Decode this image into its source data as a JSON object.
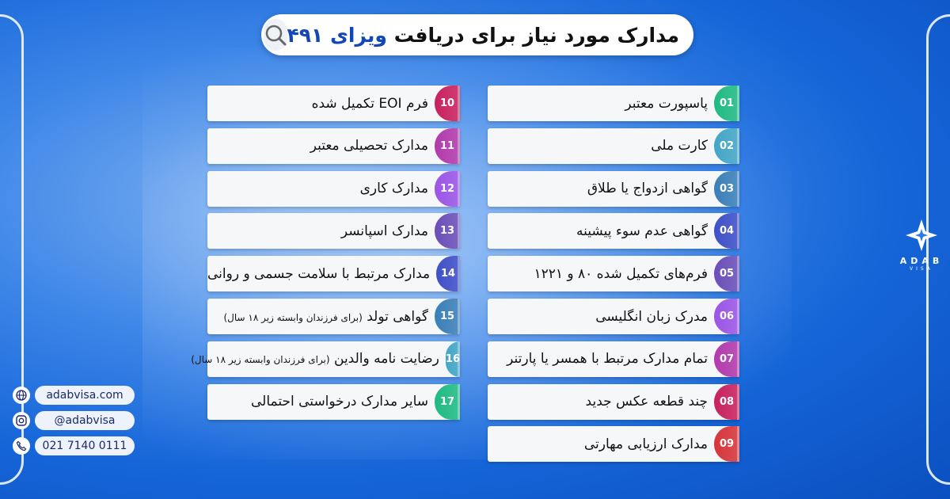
{
  "title": {
    "prefix": "مدارک مورد نیاز برای دریافت",
    "highlight": "ویزای ۴۹۱",
    "icon": "search-icon"
  },
  "right_items": [
    {
      "num": "01",
      "label": "پاسپورت معتبر",
      "color": "#1fba84"
    },
    {
      "num": "02",
      "label": "کارت ملی",
      "color": "#43a6c6"
    },
    {
      "num": "03",
      "label": "گواهی ازدواج یا طلاق",
      "color": "#3a7fb8"
    },
    {
      "num": "04",
      "label": "گواهی عدم سوء پیشینه",
      "color": "#3f4fc8"
    },
    {
      "num": "05",
      "label": "فرم‌های تکمیل شده ۸۰ و ۱۲۲۱",
      "color": "#6a4fb8"
    },
    {
      "num": "06",
      "label": "مدرک زبان انگلیسی",
      "color": "#9b55e6"
    },
    {
      "num": "07",
      "label": "تمام مدارک مرتبط با همسر یا پارتنر",
      "color": "#b23aac"
    },
    {
      "num": "08",
      "label": "چند قطعه عکس جدید",
      "color": "#c8215e"
    },
    {
      "num": "09",
      "label": "مدارک ارزیابی مهارتی",
      "color": "#d6353a"
    }
  ],
  "left_items": [
    {
      "num": "10",
      "label": "فرم EOI تکمیل شده",
      "color": "#c8215e"
    },
    {
      "num": "11",
      "label": "مدارک تحصیلی معتبر",
      "color": "#b23aac"
    },
    {
      "num": "12",
      "label": "مدارک کاری",
      "color": "#9b55e6"
    },
    {
      "num": "13",
      "label": "مدارک اسپانسر",
      "color": "#6a4fb8"
    },
    {
      "num": "14",
      "label": "مدارک مرتبط با سلامت جسمی و روانی",
      "color": "#3f4fc8"
    },
    {
      "num": "15",
      "label": "گواهی تولد",
      "note": "(برای فرزندان وابسته زیر ۱۸ سال)",
      "color": "#3a7fb8"
    },
    {
      "num": "16",
      "label": "رضایت نامه والدین",
      "note": "(برای فرزندان وابسته زیر ۱۸ سال)",
      "color": "#43a6c6"
    },
    {
      "num": "17",
      "label": "سایر مدارک درخواستی احتمالی",
      "color": "#1fba84"
    }
  ],
  "contacts": [
    {
      "icon": "globe-icon",
      "text": "adabvisa.com"
    },
    {
      "icon": "instagram-icon",
      "text": "@adabvisa"
    },
    {
      "icon": "phone-icon",
      "text": "021 7140 0111"
    }
  ],
  "logo": {
    "name": "ADAB",
    "sub": "VISA"
  }
}
